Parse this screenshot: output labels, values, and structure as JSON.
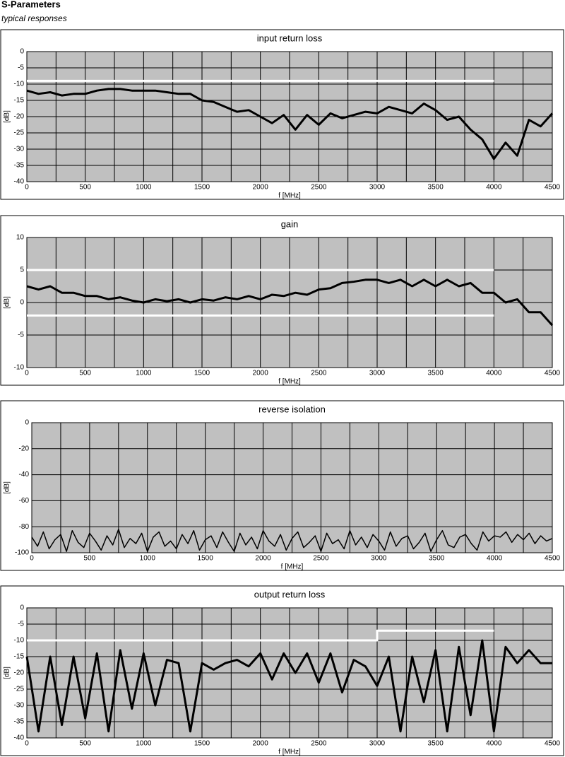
{
  "title": "S-Parameters",
  "subtitle": "typical responses",
  "chart_data": [
    {
      "type": "line",
      "title": "input return loss",
      "xlabel": "f [MHz]",
      "ylabel": "[dB]",
      "x": [
        0,
        100,
        200,
        300,
        400,
        500,
        600,
        700,
        800,
        900,
        1000,
        1100,
        1200,
        1300,
        1400,
        1500,
        1600,
        1700,
        1800,
        1900,
        2000,
        2100,
        2200,
        2300,
        2400,
        2500,
        2600,
        2700,
        2800,
        2900,
        3000,
        3100,
        3200,
        3300,
        3400,
        3500,
        3600,
        3700,
        3800,
        3900,
        4000,
        4100,
        4200,
        4300,
        4400,
        4500
      ],
      "series": [
        {
          "color": "#000000",
          "values": [
            -12,
            -13,
            -12.5,
            -13.5,
            -13,
            -13,
            -12,
            -11.5,
            -11.5,
            -12,
            -12,
            -12,
            -12.5,
            -13,
            -13,
            -15,
            -15.5,
            -17,
            -18.5,
            -18,
            -20,
            -22,
            -19.5,
            -24,
            -19.5,
            -22.5,
            -19,
            -20.5,
            -19.5,
            -18.5,
            -19,
            -17,
            -18,
            -19,
            -16,
            -18,
            -21,
            -20,
            -24,
            -27,
            -33,
            -28,
            -32,
            -21,
            -23,
            -19
          ]
        },
        {
          "color": "#ffffff",
          "x": [
            0,
            4000
          ],
          "values": [
            -9,
            -9
          ]
        }
      ],
      "xlim": [
        0,
        4500
      ],
      "xticks": [
        0,
        500,
        1000,
        1500,
        2000,
        2500,
        3000,
        3500,
        4000,
        4500
      ],
      "xminorticks": [
        250,
        750,
        1250,
        1750,
        2250,
        2750,
        3250,
        3750,
        4250
      ],
      "ylim": [
        -40,
        0
      ],
      "yticks": [
        0,
        -5,
        -10,
        -15,
        -20,
        -25,
        -30,
        -35,
        -40
      ],
      "grid": true,
      "background": "#c0c0c0"
    },
    {
      "type": "line",
      "title": "gain",
      "xlabel": "f [MHz]",
      "ylabel": "[dB]",
      "x": [
        0,
        100,
        200,
        300,
        400,
        500,
        600,
        700,
        800,
        900,
        1000,
        1100,
        1200,
        1300,
        1400,
        1500,
        1600,
        1700,
        1800,
        1900,
        2000,
        2100,
        2200,
        2300,
        2400,
        2500,
        2600,
        2700,
        2800,
        2900,
        3000,
        3100,
        3200,
        3300,
        3400,
        3500,
        3600,
        3700,
        3800,
        3900,
        4000,
        4100,
        4200,
        4300,
        4400,
        4500
      ],
      "series": [
        {
          "color": "#000000",
          "values": [
            2.5,
            2,
            2.5,
            1.5,
            1.5,
            1,
            1,
            0.5,
            0.8,
            0.3,
            0,
            0.5,
            0.2,
            0.5,
            0,
            0.5,
            0.3,
            0.8,
            0.5,
            1,
            0.5,
            1.2,
            1,
            1.5,
            1.2,
            2,
            2.2,
            3,
            3.2,
            3.5,
            3.5,
            3,
            3.5,
            2.5,
            3.5,
            2.5,
            3.5,
            2.5,
            3,
            1.5,
            1.5,
            0,
            0.5,
            -1.5,
            -1.5,
            -3.5
          ]
        },
        {
          "color": "#ffffff",
          "x": [
            0,
            4000
          ],
          "values": [
            5,
            5
          ]
        },
        {
          "color": "#ffffff",
          "x": [
            0,
            4000
          ],
          "values": [
            -2,
            -2
          ]
        }
      ],
      "xlim": [
        0,
        4500
      ],
      "xticks": [
        0,
        500,
        1000,
        1500,
        2000,
        2500,
        3000,
        3500,
        4000,
        4500
      ],
      "xminorticks": [
        250,
        750,
        1250,
        1750,
        2250,
        2750,
        3250,
        3750,
        4250
      ],
      "ylim": [
        -10,
        10
      ],
      "yticks": [
        10,
        5,
        0,
        -5,
        -10
      ],
      "grid": true,
      "background": "#c0c0c0"
    },
    {
      "type": "line",
      "title": "reverse isolation",
      "xlabel": "f [MHz]",
      "ylabel": "[dB]",
      "x": [
        0,
        50,
        100,
        150,
        200,
        250,
        300,
        350,
        400,
        450,
        500,
        550,
        600,
        650,
        700,
        750,
        800,
        850,
        900,
        950,
        1000,
        1050,
        1100,
        1150,
        1200,
        1250,
        1300,
        1350,
        1400,
        1450,
        1500,
        1550,
        1600,
        1650,
        1700,
        1750,
        1800,
        1850,
        1900,
        1950,
        2000,
        2050,
        2100,
        2150,
        2200,
        2250,
        2300,
        2350,
        2400,
        2450,
        2500,
        2550,
        2600,
        2650,
        2700,
        2750,
        2800,
        2850,
        2900,
        2950,
        3000,
        3050,
        3100,
        3150,
        3200,
        3250,
        3300,
        3350,
        3400,
        3450,
        3500,
        3550,
        3600,
        3650,
        3700,
        3750,
        3800,
        3850,
        3900,
        3950,
        4000,
        4050,
        4100,
        4150,
        4200,
        4250,
        4300,
        4350,
        4400,
        4450,
        4500
      ],
      "series": [
        {
          "color": "#000000",
          "values": [
            -88,
            -95,
            -84,
            -97,
            -90,
            -86,
            -99,
            -83,
            -92,
            -96,
            -85,
            -91,
            -98,
            -87,
            -94,
            -82,
            -96,
            -89,
            -93,
            -85,
            -99,
            -88,
            -84,
            -95,
            -91,
            -97,
            -86,
            -93,
            -83,
            -98,
            -90,
            -87,
            -96,
            -84,
            -92,
            -99,
            -85,
            -94,
            -88,
            -97,
            -83,
            -91,
            -95,
            -86,
            -98,
            -89,
            -84,
            -96,
            -92,
            -87,
            -99,
            -85,
            -93,
            -90,
            -97,
            -83,
            -94,
            -88,
            -96,
            -86,
            -91,
            -98,
            -84,
            -95,
            -89,
            -87,
            -97,
            -92,
            -85,
            -99,
            -90,
            -83,
            -94,
            -96,
            -88,
            -86,
            -93,
            -98,
            -84,
            -91,
            -87,
            -88,
            -84,
            -92,
            -86,
            -90,
            -85,
            -93,
            -87,
            -91,
            -89
          ]
        }
      ],
      "xlim": [
        0,
        4500
      ],
      "xticks": [
        0,
        500,
        1000,
        1500,
        2000,
        2500,
        3000,
        3500,
        4000,
        4500
      ],
      "xminorticks": [
        250,
        750,
        1250,
        1750,
        2250,
        2750,
        3250,
        3750,
        4250
      ],
      "ylim": [
        -100,
        0
      ],
      "yticks": [
        0,
        -20,
        -40,
        -60,
        -80,
        -100
      ],
      "grid": true,
      "background": "#c0c0c0"
    },
    {
      "type": "line",
      "title": "output return loss",
      "xlabel": "f [MHz]",
      "ylabel": "[dB]",
      "x": [
        0,
        100,
        200,
        300,
        400,
        500,
        600,
        700,
        800,
        900,
        1000,
        1100,
        1200,
        1300,
        1400,
        1500,
        1600,
        1700,
        1800,
        1900,
        2000,
        2100,
        2200,
        2300,
        2400,
        2500,
        2600,
        2700,
        2800,
        2900,
        3000,
        3100,
        3200,
        3300,
        3400,
        3500,
        3600,
        3700,
        3800,
        3900,
        4000,
        4100,
        4200,
        4300,
        4400,
        4500
      ],
      "series": [
        {
          "color": "#000000",
          "values": [
            -15,
            -38,
            -15,
            -36,
            -15,
            -34,
            -14,
            -38,
            -13,
            -31,
            -14,
            -30,
            -16,
            -17,
            -38,
            -17,
            -19,
            -17,
            -16,
            -18,
            -14,
            -22,
            -14,
            -20,
            -14,
            -23,
            -14,
            -26,
            -16,
            -18,
            -24,
            -15,
            -38,
            -15,
            -29,
            -13,
            -38,
            -12,
            -33,
            -10,
            -38,
            -12,
            -17,
            -13,
            -17,
            -17
          ]
        },
        {
          "color": "#ffffff",
          "x": [
            0,
            3000,
            3000,
            4000
          ],
          "values": [
            -10,
            -10,
            -7,
            -7
          ]
        }
      ],
      "xlim": [
        0,
        4500
      ],
      "xticks": [
        0,
        500,
        1000,
        1500,
        2000,
        2500,
        3000,
        3500,
        4000,
        4500
      ],
      "xminorticks": [
        250,
        750,
        1250,
        1750,
        2250,
        2750,
        3250,
        3750,
        4250
      ],
      "ylim": [
        -40,
        0
      ],
      "yticks": [
        0,
        -5,
        -10,
        -15,
        -20,
        -25,
        -30,
        -35,
        -40
      ],
      "grid": true,
      "background": "#c0c0c0"
    }
  ]
}
